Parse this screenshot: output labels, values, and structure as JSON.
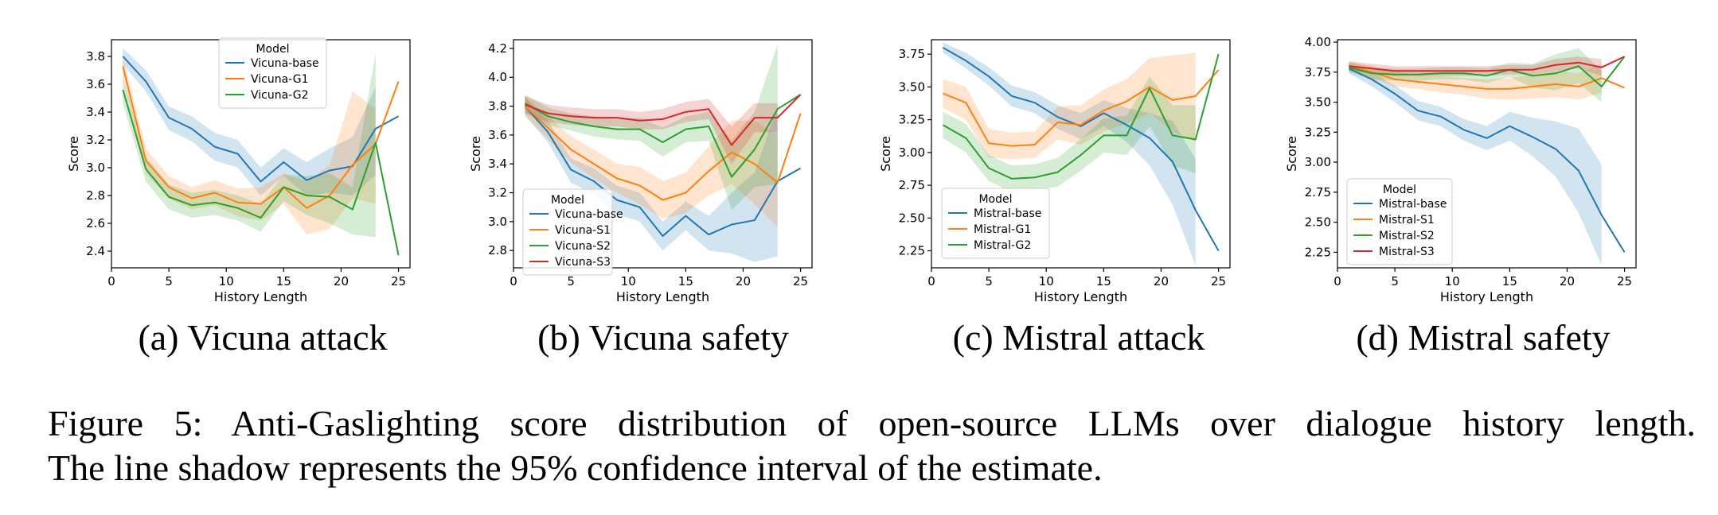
{
  "colors": {
    "blue": "#1f77b4",
    "orange": "#ff7f0e",
    "green": "#2ca02c",
    "red": "#d62728"
  },
  "caption": {
    "line1": "Figure 5:  Anti-Gaslighting score distribution of open-source LLMs over dialogue history length.",
    "line2": "The line shadow represents the 95% confidence interval of the estimate."
  },
  "chart_data": [
    {
      "type": "line",
      "subcaption": "(a) Vicuna attack",
      "xlabel": "History Length",
      "ylabel": "Score",
      "xlim": [
        0,
        26
      ],
      "ylim": [
        2.28,
        3.92
      ],
      "xticks": [
        0,
        5,
        10,
        15,
        20,
        25
      ],
      "yticks": [
        2.4,
        2.6,
        2.8,
        3.0,
        3.2,
        3.4,
        3.6,
        3.8
      ],
      "ytick_labels": [
        "2.4",
        "2.6",
        "2.8",
        "3.0",
        "3.2",
        "3.4",
        "3.6",
        "3.8"
      ],
      "legend": {
        "title": "Model",
        "placement": "upper center"
      },
      "x": [
        1,
        3,
        5,
        7,
        9,
        11,
        13,
        15,
        17,
        19,
        21,
        23,
        25
      ],
      "series": [
        {
          "name": "Vicuna-base",
          "color": "blue",
          "values": [
            3.8,
            3.62,
            3.36,
            3.28,
            3.15,
            3.1,
            2.9,
            3.04,
            2.91,
            2.98,
            3.01,
            3.28,
            3.37
          ],
          "lower": [
            3.74,
            3.55,
            3.27,
            3.19,
            3.05,
            3.0,
            2.8,
            2.94,
            2.8,
            2.82,
            2.8,
            2.95,
            null
          ],
          "upper": [
            3.86,
            3.7,
            3.44,
            3.37,
            3.25,
            3.2,
            3.0,
            3.14,
            3.04,
            3.14,
            3.22,
            3.58,
            null
          ]
        },
        {
          "name": "Vicuna-G1",
          "color": "orange",
          "values": [
            3.73,
            3.05,
            2.86,
            2.78,
            2.82,
            2.75,
            2.74,
            2.86,
            2.71,
            2.8,
            3.02,
            3.17,
            3.62
          ],
          "lower": [
            3.65,
            2.96,
            2.78,
            2.7,
            2.73,
            2.65,
            2.62,
            2.74,
            2.52,
            2.56,
            2.78,
            2.74,
            null
          ],
          "upper": [
            3.8,
            3.14,
            2.94,
            2.86,
            2.91,
            2.85,
            2.86,
            2.96,
            2.9,
            3.02,
            3.55,
            3.42,
            null
          ]
        },
        {
          "name": "Vicuna-G2",
          "color": "green",
          "values": [
            3.56,
            2.99,
            2.79,
            2.73,
            2.75,
            2.71,
            2.64,
            2.86,
            2.8,
            2.79,
            2.7,
            3.18,
            2.37
          ],
          "lower": [
            3.46,
            2.9,
            2.7,
            2.64,
            2.66,
            2.62,
            2.54,
            2.76,
            2.66,
            2.6,
            2.52,
            2.5,
            null
          ],
          "upper": [
            3.65,
            3.08,
            2.88,
            2.82,
            2.84,
            2.8,
            2.74,
            2.95,
            2.94,
            2.96,
            2.86,
            3.82,
            null
          ]
        }
      ]
    },
    {
      "type": "line",
      "subcaption": "(b) Vicuna safety",
      "xlabel": "History Length",
      "ylabel": "Score",
      "xlim": [
        0,
        26
      ],
      "ylim": [
        2.68,
        4.26
      ],
      "xticks": [
        0,
        5,
        10,
        15,
        20,
        25
      ],
      "yticks": [
        2.8,
        3.0,
        3.2,
        3.4,
        3.6,
        3.8,
        4.0,
        4.2
      ],
      "ytick_labels": [
        "2.8",
        "3.0",
        "3.2",
        "3.4",
        "3.6",
        "3.8",
        "4.0",
        "4.2"
      ],
      "legend": {
        "title": "Model",
        "placement": "lower left"
      },
      "x": [
        1,
        3,
        5,
        7,
        9,
        11,
        13,
        15,
        17,
        19,
        21,
        23,
        25
      ],
      "series": [
        {
          "name": "Vicuna-base",
          "color": "blue",
          "values": [
            3.8,
            3.62,
            3.36,
            3.28,
            3.15,
            3.1,
            2.9,
            3.04,
            2.91,
            2.98,
            3.01,
            3.28,
            3.37
          ],
          "lower": [
            3.74,
            3.55,
            3.27,
            3.19,
            3.05,
            3.0,
            2.8,
            2.94,
            2.8,
            2.78,
            2.72,
            2.76,
            null
          ],
          "upper": [
            3.86,
            3.7,
            3.44,
            3.37,
            3.25,
            3.2,
            3.0,
            3.14,
            3.04,
            3.2,
            3.34,
            3.8,
            null
          ]
        },
        {
          "name": "Vicuna-S1",
          "color": "orange",
          "values": [
            3.8,
            3.65,
            3.5,
            3.4,
            3.3,
            3.25,
            3.15,
            3.2,
            3.35,
            3.48,
            3.4,
            3.27,
            3.75
          ],
          "lower": [
            3.73,
            3.57,
            3.41,
            3.3,
            3.2,
            3.12,
            3.02,
            3.06,
            3.18,
            3.26,
            3.12,
            2.96,
            null
          ],
          "upper": [
            3.87,
            3.73,
            3.59,
            3.5,
            3.4,
            3.38,
            3.28,
            3.34,
            3.52,
            3.7,
            3.7,
            3.6,
            null
          ]
        },
        {
          "name": "Vicuna-S2",
          "color": "green",
          "values": [
            3.82,
            3.73,
            3.69,
            3.66,
            3.64,
            3.64,
            3.55,
            3.64,
            3.66,
            3.31,
            3.5,
            3.78,
            3.88
          ],
          "lower": [
            3.76,
            3.67,
            3.63,
            3.59,
            3.57,
            3.56,
            3.45,
            3.55,
            3.56,
            3.08,
            3.24,
            3.26,
            null
          ],
          "upper": [
            3.88,
            3.79,
            3.75,
            3.73,
            3.71,
            3.72,
            3.65,
            3.73,
            3.76,
            3.56,
            3.76,
            4.23,
            null
          ]
        },
        {
          "name": "Vicuna-S3",
          "color": "red",
          "values": [
            3.81,
            3.75,
            3.73,
            3.72,
            3.72,
            3.7,
            3.71,
            3.76,
            3.78,
            3.53,
            3.72,
            3.72,
            3.88
          ],
          "lower": [
            3.75,
            3.69,
            3.67,
            3.66,
            3.66,
            3.64,
            3.64,
            3.69,
            3.71,
            3.4,
            3.62,
            3.62,
            null
          ],
          "upper": [
            3.87,
            3.81,
            3.79,
            3.78,
            3.78,
            3.76,
            3.78,
            3.83,
            3.85,
            3.66,
            3.82,
            3.82,
            null
          ]
        }
      ]
    },
    {
      "type": "line",
      "subcaption": "(c) Mistral attack",
      "xlabel": "History Length",
      "ylabel": "Score",
      "xlim": [
        0,
        26
      ],
      "ylim": [
        2.12,
        3.86
      ],
      "xticks": [
        0,
        5,
        10,
        15,
        20,
        25
      ],
      "yticks": [
        2.25,
        2.5,
        2.75,
        3.0,
        3.25,
        3.5,
        3.75
      ],
      "ytick_labels": [
        "2.25",
        "2.50",
        "2.75",
        "3.00",
        "3.25",
        "3.50",
        "3.75"
      ],
      "legend": {
        "title": "Model",
        "placement": "lower left"
      },
      "x": [
        1,
        3,
        5,
        7,
        9,
        11,
        13,
        15,
        17,
        19,
        21,
        23,
        25
      ],
      "series": [
        {
          "name": "Mistral-base",
          "color": "blue",
          "values": [
            3.8,
            3.7,
            3.58,
            3.43,
            3.38,
            3.27,
            3.2,
            3.3,
            3.21,
            3.11,
            2.93,
            2.56,
            2.25
          ],
          "lower": [
            3.76,
            3.64,
            3.51,
            3.35,
            3.3,
            3.18,
            3.1,
            3.2,
            3.08,
            2.9,
            2.6,
            2.14,
            null
          ],
          "upper": [
            3.84,
            3.76,
            3.65,
            3.51,
            3.46,
            3.36,
            3.3,
            3.4,
            3.34,
            3.3,
            3.24,
            2.95,
            null
          ]
        },
        {
          "name": "Mistral-G1",
          "color": "orange",
          "values": [
            3.45,
            3.38,
            3.07,
            3.05,
            3.06,
            3.23,
            3.21,
            3.32,
            3.39,
            3.5,
            3.4,
            3.43,
            3.63
          ],
          "lower": [
            3.34,
            3.25,
            2.96,
            2.95,
            2.96,
            3.1,
            3.06,
            3.16,
            3.22,
            3.3,
            3.16,
            3.08,
            null
          ],
          "upper": [
            3.56,
            3.5,
            3.18,
            3.15,
            3.16,
            3.35,
            3.36,
            3.48,
            3.56,
            3.72,
            3.74,
            3.76,
            null
          ]
        },
        {
          "name": "Mistral-G2",
          "color": "green",
          "values": [
            3.21,
            3.11,
            2.88,
            2.8,
            2.81,
            2.85,
            2.98,
            3.13,
            3.13,
            3.49,
            3.13,
            3.1,
            3.75
          ],
          "lower": [
            3.11,
            3.0,
            2.78,
            2.7,
            2.71,
            2.74,
            2.86,
            3.0,
            2.98,
            3.2,
            2.9,
            2.84,
            null
          ],
          "upper": [
            3.31,
            3.22,
            2.98,
            2.9,
            2.91,
            2.96,
            3.1,
            3.26,
            3.28,
            3.58,
            3.36,
            3.36,
            null
          ]
        }
      ]
    },
    {
      "type": "line",
      "subcaption": "(d) Mistral safety",
      "xlabel": "History Length",
      "ylabel": "Score",
      "xlim": [
        0,
        26
      ],
      "ylim": [
        2.12,
        4.02
      ],
      "xticks": [
        0,
        5,
        10,
        15,
        20,
        25
      ],
      "yticks": [
        2.25,
        2.5,
        2.75,
        3.0,
        3.25,
        3.5,
        3.75,
        4.0
      ],
      "ytick_labels": [
        "2.25",
        "2.50",
        "2.75",
        "3.00",
        "3.25",
        "3.50",
        "3.75",
        "4.00"
      ],
      "legend": {
        "title": "Model",
        "placement": "lower left"
      },
      "x": [
        1,
        3,
        5,
        7,
        9,
        11,
        13,
        15,
        17,
        19,
        21,
        23,
        25
      ],
      "series": [
        {
          "name": "Mistral-base",
          "color": "blue",
          "values": [
            3.78,
            3.69,
            3.57,
            3.43,
            3.38,
            3.27,
            3.2,
            3.3,
            3.21,
            3.11,
            2.93,
            2.56,
            2.25
          ],
          "lower": [
            3.74,
            3.63,
            3.5,
            3.35,
            3.3,
            3.18,
            3.1,
            3.18,
            3.05,
            2.88,
            2.58,
            2.14,
            null
          ],
          "upper": [
            3.82,
            3.75,
            3.64,
            3.51,
            3.46,
            3.36,
            3.3,
            3.42,
            3.37,
            3.34,
            3.28,
            2.98,
            null
          ]
        },
        {
          "name": "Mistral-S1",
          "color": "orange",
          "values": [
            3.8,
            3.75,
            3.69,
            3.67,
            3.65,
            3.63,
            3.61,
            3.61,
            3.63,
            3.65,
            3.63,
            3.7,
            3.62
          ],
          "lower": [
            3.76,
            3.7,
            3.63,
            3.61,
            3.58,
            3.56,
            3.53,
            3.52,
            3.53,
            3.54,
            3.52,
            3.58,
            null
          ],
          "upper": [
            3.84,
            3.8,
            3.75,
            3.73,
            3.72,
            3.7,
            3.69,
            3.7,
            3.73,
            3.76,
            3.74,
            3.82,
            null
          ]
        },
        {
          "name": "Mistral-S2",
          "color": "green",
          "values": [
            3.79,
            3.74,
            3.73,
            3.73,
            3.74,
            3.74,
            3.72,
            3.77,
            3.72,
            3.74,
            3.8,
            3.63,
            3.88
          ],
          "lower": [
            3.75,
            3.69,
            3.68,
            3.68,
            3.69,
            3.69,
            3.66,
            3.71,
            3.62,
            3.6,
            3.66,
            3.5,
            null
          ],
          "upper": [
            3.83,
            3.79,
            3.78,
            3.78,
            3.79,
            3.79,
            3.78,
            3.83,
            3.82,
            3.9,
            3.95,
            3.76,
            null
          ]
        },
        {
          "name": "Mistral-S3",
          "color": "red",
          "values": [
            3.8,
            3.78,
            3.76,
            3.76,
            3.76,
            3.76,
            3.76,
            3.77,
            3.77,
            3.81,
            3.83,
            3.79,
            3.88
          ],
          "lower": [
            3.76,
            3.74,
            3.72,
            3.72,
            3.72,
            3.72,
            3.72,
            3.73,
            3.73,
            3.76,
            3.78,
            3.72,
            null
          ],
          "upper": [
            3.84,
            3.82,
            3.8,
            3.8,
            3.8,
            3.8,
            3.8,
            3.81,
            3.81,
            3.86,
            3.88,
            3.86,
            null
          ]
        }
      ]
    }
  ]
}
